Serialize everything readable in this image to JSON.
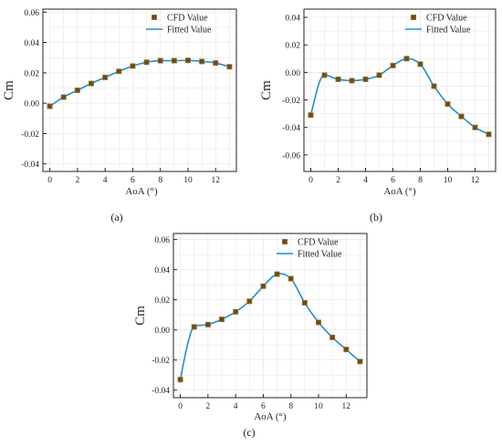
{
  "colors": {
    "marker_fill": "#6e4a1c",
    "marker_edge": "#9a7a2e",
    "fit_line": "#1f8fcc",
    "grid": "#e6e6e6",
    "axis": "#222222"
  },
  "chart_data": [
    {
      "type": "line",
      "panel_label": "(a)",
      "xlabel": "AoA (°)",
      "ylabel": "Cm",
      "xlim": [
        -0.5,
        13.5
      ],
      "ylim": [
        -0.045,
        0.062
      ],
      "xticks": [
        0,
        2,
        4,
        6,
        8,
        10,
        12
      ],
      "yticks": [
        -0.04,
        -0.02,
        0.0,
        0.02,
        0.04,
        0.06
      ],
      "ytick_labels": [
        "-0.04",
        "-0.02",
        "0.00",
        "0.02",
        "0.04",
        "0.06"
      ],
      "grid": true,
      "legend_position": "top-right",
      "series": [
        {
          "name": "CFD Value",
          "kind": "markers",
          "x": [
            0,
            1,
            2,
            3,
            4,
            5,
            6,
            7,
            8,
            9,
            10,
            11,
            12,
            13
          ],
          "y": [
            -0.002,
            0.004,
            0.0085,
            0.013,
            0.017,
            0.021,
            0.0245,
            0.027,
            0.028,
            0.028,
            0.0282,
            0.0275,
            0.0265,
            0.024
          ]
        },
        {
          "name": "Fitted Value",
          "kind": "line",
          "x": [
            0,
            1,
            2,
            3,
            4,
            5,
            6,
            7,
            8,
            9,
            10,
            11,
            12,
            13
          ],
          "y": [
            -0.002,
            0.004,
            0.0085,
            0.013,
            0.017,
            0.021,
            0.0245,
            0.027,
            0.028,
            0.028,
            0.0282,
            0.0275,
            0.0265,
            0.024
          ]
        }
      ]
    },
    {
      "type": "line",
      "panel_label": "(b)",
      "xlabel": "AoA (°)",
      "ylabel": "Cm",
      "xlim": [
        -0.5,
        13.5
      ],
      "ylim": [
        -0.072,
        0.046
      ],
      "xticks": [
        0,
        2,
        4,
        6,
        8,
        10,
        12
      ],
      "yticks": [
        -0.06,
        -0.04,
        -0.02,
        0.0,
        0.02,
        0.04
      ],
      "ytick_labels": [
        "-0.06",
        "-0.04",
        "-0.02",
        "0.00",
        "0.02",
        "0.04"
      ],
      "grid": true,
      "legend_position": "top-right",
      "series": [
        {
          "name": "CFD Value",
          "kind": "markers",
          "x": [
            0,
            1,
            2,
            3,
            4,
            5,
            6,
            7,
            8,
            9,
            10,
            11,
            12,
            13
          ],
          "y": [
            -0.031,
            -0.002,
            -0.005,
            -0.006,
            -0.005,
            -0.002,
            0.005,
            0.01,
            0.006,
            -0.01,
            -0.023,
            -0.032,
            -0.04,
            -0.045
          ]
        },
        {
          "name": "Fitted Value",
          "kind": "line",
          "x": [
            0,
            0.3,
            0.6,
            1,
            2,
            3,
            4,
            5,
            6,
            7,
            8,
            9,
            10,
            11,
            12,
            13
          ],
          "y": [
            -0.031,
            -0.019,
            -0.008,
            -0.002,
            -0.005,
            -0.006,
            -0.005,
            -0.002,
            0.005,
            0.01,
            0.006,
            -0.01,
            -0.023,
            -0.032,
            -0.04,
            -0.045
          ]
        }
      ]
    },
    {
      "type": "line",
      "panel_label": "(c)",
      "xlabel": "AoA (°)",
      "ylabel": "Cm",
      "xlim": [
        -0.5,
        13.5
      ],
      "ylim": [
        -0.045,
        0.064
      ],
      "xticks": [
        0,
        2,
        4,
        6,
        8,
        10,
        12
      ],
      "yticks": [
        -0.04,
        -0.02,
        0.0,
        0.02,
        0.04,
        0.06
      ],
      "ytick_labels": [
        "-0.04",
        "-0.02",
        "0.00",
        "0.02",
        "0.04",
        "0.06"
      ],
      "grid": true,
      "legend_position": "top-right",
      "series": [
        {
          "name": "CFD Value",
          "kind": "markers",
          "x": [
            0,
            1,
            2,
            3,
            4,
            5,
            6,
            7,
            8,
            9,
            10,
            11,
            12,
            13
          ],
          "y": [
            -0.033,
            0.002,
            0.0035,
            0.007,
            0.012,
            0.019,
            0.029,
            0.037,
            0.034,
            0.018,
            0.005,
            -0.005,
            -0.013,
            -0.021
          ]
        },
        {
          "name": "Fitted Value",
          "kind": "line",
          "x": [
            0,
            0.3,
            0.6,
            1,
            2,
            3,
            4,
            5,
            6,
            7,
            8,
            9,
            10,
            11,
            12,
            13
          ],
          "y": [
            -0.033,
            -0.019,
            -0.007,
            0.002,
            0.0035,
            0.007,
            0.012,
            0.019,
            0.029,
            0.037,
            0.034,
            0.018,
            0.005,
            -0.005,
            -0.013,
            -0.021
          ]
        }
      ]
    }
  ]
}
